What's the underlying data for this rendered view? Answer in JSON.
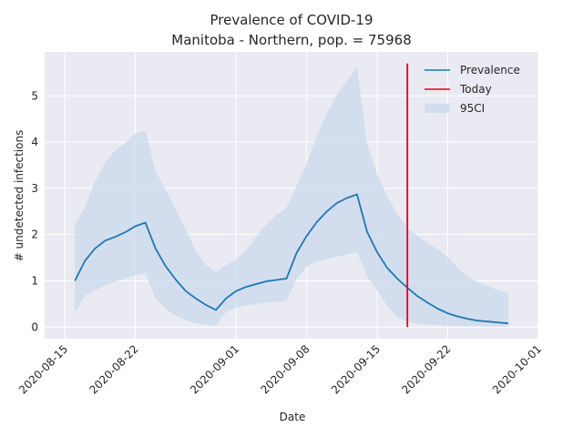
{
  "chart_data": {
    "type": "line",
    "title": "Prevalence of COVID-19",
    "subtitle": "Manitoba - Northern, pop. = 75968",
    "xlabel": "Date",
    "ylabel": "# undetected infections",
    "x_ticks": [
      "2020-08-15",
      "2020-08-22",
      "2020-09-01",
      "2020-09-08",
      "2020-09-15",
      "2020-09-22",
      "2020-10-01"
    ],
    "y_ticks": [
      "0",
      "1",
      "2",
      "3",
      "4",
      "5"
    ],
    "xlim": [
      "2020-08-13",
      "2020-10-01"
    ],
    "ylim": [
      -0.25,
      5.95
    ],
    "grid": true,
    "legend_position": "top-right",
    "series": [
      {
        "name": "Prevalence",
        "kind": "line",
        "color": "#1f77b4",
        "x": [
          "2020-08-16",
          "2020-08-17",
          "2020-08-18",
          "2020-08-19",
          "2020-08-20",
          "2020-08-21",
          "2020-08-22",
          "2020-08-23",
          "2020-08-24",
          "2020-08-25",
          "2020-08-26",
          "2020-08-27",
          "2020-08-28",
          "2020-08-29",
          "2020-08-30",
          "2020-08-31",
          "2020-09-01",
          "2020-09-02",
          "2020-09-03",
          "2020-09-04",
          "2020-09-05",
          "2020-09-06",
          "2020-09-07",
          "2020-09-08",
          "2020-09-09",
          "2020-09-10",
          "2020-09-11",
          "2020-09-12",
          "2020-09-13",
          "2020-09-14",
          "2020-09-15",
          "2020-09-16",
          "2020-09-17",
          "2020-09-18",
          "2020-09-19",
          "2020-09-20",
          "2020-09-21",
          "2020-09-22",
          "2020-09-23",
          "2020-09-24",
          "2020-09-25",
          "2020-09-26",
          "2020-09-27",
          "2020-09-28"
        ],
        "values": [
          1.0,
          1.43,
          1.7,
          1.87,
          1.95,
          2.05,
          2.18,
          2.26,
          1.7,
          1.32,
          1.03,
          0.78,
          0.62,
          0.48,
          0.37,
          0.62,
          0.78,
          0.87,
          0.93,
          0.99,
          1.02,
          1.05,
          1.6,
          1.97,
          2.27,
          2.5,
          2.68,
          2.79,
          2.87,
          2.06,
          1.62,
          1.28,
          1.05,
          0.85,
          0.67,
          0.53,
          0.4,
          0.3,
          0.23,
          0.18,
          0.14,
          0.12,
          0.1,
          0.08
        ]
      },
      {
        "name": "95CI",
        "kind": "band",
        "color": "#c9d9ec",
        "lower": [
          0.32,
          0.68,
          0.8,
          0.9,
          0.98,
          1.05,
          1.12,
          1.17,
          0.62,
          0.4,
          0.25,
          0.15,
          0.09,
          0.05,
          0.03,
          0.33,
          0.43,
          0.47,
          0.5,
          0.53,
          0.55,
          0.56,
          1.05,
          1.3,
          1.42,
          1.47,
          1.52,
          1.57,
          1.62,
          1.1,
          0.8,
          0.45,
          0.22,
          0.12,
          0.08,
          0.05,
          0.04,
          0.03,
          0.02,
          0.02,
          0.02,
          0.01,
          0.01,
          0.01
        ],
        "upper": [
          2.2,
          2.6,
          3.15,
          3.55,
          3.82,
          3.98,
          4.18,
          4.25,
          3.38,
          2.98,
          2.55,
          2.1,
          1.65,
          1.35,
          1.18,
          1.34,
          1.46,
          1.65,
          1.95,
          2.22,
          2.42,
          2.58,
          3.05,
          3.55,
          4.13,
          4.62,
          5.02,
          5.32,
          5.63,
          3.95,
          3.3,
          2.82,
          2.45,
          2.14,
          1.97,
          1.82,
          1.68,
          1.52,
          1.28,
          1.1,
          0.97,
          0.88,
          0.8,
          0.74
        ]
      },
      {
        "name": "Today",
        "kind": "vline",
        "color": "#e8000b",
        "x": "2020-09-18",
        "y_range": [
          0,
          5.7
        ]
      }
    ]
  }
}
